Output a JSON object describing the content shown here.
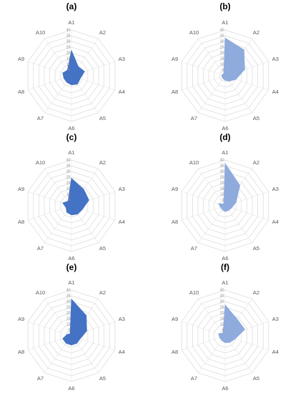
{
  "chart_data": [
    {
      "type": "radar",
      "label": "(a)",
      "categories": [
        "A1",
        "A2",
        "A3",
        "A4",
        "A5",
        "A6",
        "A7",
        "A8",
        "A9",
        "A10"
      ],
      "r_ticks": [
        5,
        10,
        15,
        20,
        25,
        30,
        35,
        40
      ],
      "r_range": [
        0,
        40
      ],
      "color": "#4472c4",
      "fill_opacity": 1.0,
      "values": [
        22,
        10,
        12,
        8,
        9,
        8,
        7,
        7,
        8,
        6
      ]
    },
    {
      "type": "radar",
      "label": "(b)",
      "categories": [
        "A1",
        "A2",
        "A3",
        "A4",
        "A5",
        "A6",
        "A7",
        "A8",
        "A9",
        "A10"
      ],
      "r_ticks": [
        5,
        10,
        15,
        20,
        25,
        30,
        35,
        40
      ],
      "r_range": [
        0,
        40
      ],
      "color": "#8faadc",
      "fill_opacity": 1.0,
      "values": [
        33,
        28,
        18,
        10,
        6,
        4,
        3,
        3,
        3,
        2
      ]
    },
    {
      "type": "radar",
      "label": "(c)",
      "categories": [
        "A1",
        "A2",
        "A3",
        "A4",
        "A5",
        "A6",
        "A7",
        "A8",
        "A9",
        "A10"
      ],
      "r_ticks": [
        5,
        10,
        15,
        20,
        25,
        30,
        35,
        40
      ],
      "r_range": [
        0,
        40
      ],
      "color": "#4472c4",
      "fill_opacity": 1.0,
      "values": [
        24,
        18,
        16,
        10,
        9,
        8,
        7,
        5,
        8,
        5
      ]
    },
    {
      "type": "radar",
      "label": "(d)",
      "categories": [
        "A1",
        "A2",
        "A3",
        "A4",
        "A5",
        "A6",
        "A7",
        "A8",
        "A9",
        "A10"
      ],
      "r_ticks": [
        5,
        10,
        15,
        20,
        25,
        30,
        35,
        40
      ],
      "r_range": [
        0,
        40
      ],
      "color": "#8faadc",
      "fill_opacity": 1.0,
      "values": [
        37,
        22,
        10,
        6,
        5,
        5,
        4,
        4,
        6,
        2
      ]
    },
    {
      "type": "radar",
      "label": "(e)",
      "categories": [
        "A1",
        "A2",
        "A3",
        "A4",
        "A5",
        "A6",
        "A7",
        "A8",
        "A9",
        "A10"
      ],
      "r_ticks": [
        5,
        10,
        15,
        20,
        25,
        30,
        35,
        40
      ],
      "r_range": [
        0,
        40
      ],
      "color": "#4472c4",
      "fill_opacity": 1.0,
      "values": [
        32,
        22,
        14,
        8,
        8,
        8,
        8,
        8,
        4,
        2
      ]
    },
    {
      "type": "radar",
      "label": "(f)",
      "categories": [
        "A1",
        "A2",
        "A3",
        "A4",
        "A5",
        "A6",
        "A7",
        "A8",
        "A9",
        "A10"
      ],
      "r_ticks": [
        5,
        10,
        15,
        20,
        25,
        30,
        35,
        40
      ],
      "r_range": [
        0,
        40
      ],
      "color": "#8faadc",
      "fill_opacity": 1.0,
      "values": [
        27,
        18,
        18,
        9,
        7,
        6,
        5,
        5,
        6,
        3
      ]
    }
  ]
}
